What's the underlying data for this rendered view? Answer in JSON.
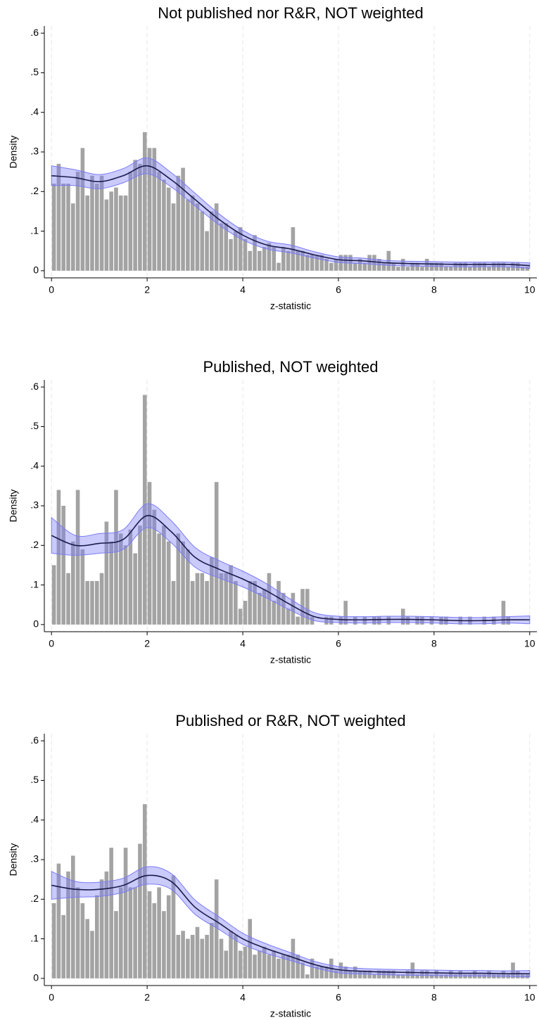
{
  "chart_data": [
    {
      "type": "histogram",
      "title": "Not published nor R&R, NOT weighted",
      "xlabel": "z-statistic",
      "ylabel": "Density",
      "bins": [
        0,
        0.1,
        0.2,
        0.3,
        0.4,
        0.5,
        0.6,
        0.7,
        0.8,
        0.9,
        1,
        1.1,
        1.2,
        1.3,
        1.4,
        1.5,
        1.6,
        1.7,
        1.8,
        1.9,
        2,
        2.1,
        2.2,
        2.3,
        2.4,
        2.5,
        2.6,
        2.7,
        2.8,
        2.9,
        3,
        3.1,
        3.2,
        3.3,
        3.4,
        3.5,
        3.6,
        3.7,
        3.8,
        3.9,
        4,
        4.1,
        4.2,
        4.3,
        4.4,
        4.5,
        4.6,
        4.7,
        4.8,
        4.9,
        5,
        5.1,
        5.2,
        5.3,
        5.4,
        5.5,
        5.6,
        5.7,
        5.8,
        5.9,
        6,
        6.1,
        6.2,
        6.3,
        6.4,
        6.5,
        6.6,
        6.7,
        6.8,
        6.9,
        7,
        7.1,
        7.2,
        7.3,
        7.4,
        7.5,
        7.6,
        7.7,
        7.8,
        7.9,
        8,
        8.1,
        8.2,
        8.3,
        8.4,
        8.5,
        8.6,
        8.7,
        8.8,
        8.9,
        9,
        9.1,
        9.2,
        9.3,
        9.4,
        9.5,
        9.6,
        9.7,
        9.8,
        9.9,
        10
      ],
      "values": [
        0.22,
        0.27,
        0.22,
        0.22,
        0.17,
        0.25,
        0.31,
        0.19,
        0.24,
        0.22,
        0.24,
        0.18,
        0.2,
        0.21,
        0.19,
        0.19,
        0.25,
        0.28,
        0.27,
        0.35,
        0.31,
        0.31,
        0.25,
        0.23,
        0.21,
        0.17,
        0.24,
        0.26,
        0.18,
        0.19,
        0.17,
        0.15,
        0.1,
        0.15,
        0.17,
        0.12,
        0.12,
        0.08,
        0.1,
        0.11,
        0.08,
        0.05,
        0.09,
        0.05,
        0.06,
        0.07,
        0.06,
        0.02,
        0.06,
        0.05,
        0.11,
        0.05,
        0.05,
        0.04,
        0.04,
        0.04,
        0.04,
        0.03,
        0.02,
        0.03,
        0.04,
        0.04,
        0.04,
        0.02,
        0.03,
        0.02,
        0.04,
        0.04,
        0.03,
        0.02,
        0.05,
        0.02,
        0.01,
        0.03,
        0.01,
        0.02,
        0.02,
        0.01,
        0.03,
        0.02,
        0.02,
        0.02,
        0.01,
        0.01,
        0.02,
        0.02,
        0.02,
        0.01,
        0.02,
        0.02,
        0.02,
        0.01,
        0.02,
        0.02,
        0.02,
        0.01,
        0.02,
        0.02,
        0.01,
        0.01
      ],
      "color": "#a3a3a3",
      "density": {
        "x": [
          0,
          0.5,
          1,
          1.5,
          2,
          2.5,
          3,
          3.5,
          4,
          4.5,
          5,
          5.5,
          6,
          6.5,
          7,
          7.5,
          8,
          8.5,
          9,
          9.5,
          10
        ],
        "values": [
          0.24,
          0.235,
          0.225,
          0.24,
          0.265,
          0.23,
          0.18,
          0.13,
          0.09,
          0.065,
          0.055,
          0.04,
          0.028,
          0.025,
          0.02,
          0.018,
          0.017,
          0.016,
          0.016,
          0.016,
          0.013
        ],
        "lower": [
          0.215,
          0.215,
          0.207,
          0.222,
          0.245,
          0.212,
          0.164,
          0.116,
          0.078,
          0.055,
          0.045,
          0.032,
          0.021,
          0.018,
          0.014,
          0.012,
          0.011,
          0.01,
          0.01,
          0.01,
          0.006
        ],
        "upper": [
          0.265,
          0.255,
          0.243,
          0.258,
          0.285,
          0.248,
          0.196,
          0.144,
          0.102,
          0.075,
          0.065,
          0.048,
          0.035,
          0.032,
          0.026,
          0.024,
          0.023,
          0.022,
          0.022,
          0.022,
          0.02
        ],
        "color": "#1b1b4a",
        "band_color": "#7b7bf5"
      },
      "xlim": [
        -0.15,
        10.15
      ],
      "xticks": [
        0,
        2,
        4,
        6,
        8,
        10
      ],
      "ylim": [
        -0.018,
        0.618
      ],
      "yticks": [
        0,
        {
          "value": 0.1,
          "label": ".1"
        },
        {
          "value": 0.2,
          "label": ".2"
        },
        {
          "value": 0.3,
          "label": ".3"
        },
        {
          "value": 0.4,
          "label": ".4"
        },
        {
          "value": 0.5,
          "label": ".5"
        },
        {
          "value": 0.6,
          "label": ".6"
        }
      ],
      "grid": true
    },
    {
      "type": "histogram",
      "title": "Published, NOT weighted",
      "xlabel": "z-statistic",
      "ylabel": "Density",
      "bins": [
        0,
        0.1,
        0.2,
        0.3,
        0.4,
        0.5,
        0.6,
        0.7,
        0.8,
        0.9,
        1,
        1.1,
        1.2,
        1.3,
        1.4,
        1.5,
        1.6,
        1.7,
        1.8,
        1.9,
        2,
        2.1,
        2.2,
        2.3,
        2.4,
        2.5,
        2.6,
        2.7,
        2.8,
        2.9,
        3,
        3.1,
        3.2,
        3.3,
        3.4,
        3.5,
        3.6,
        3.7,
        3.8,
        3.9,
        4,
        4.1,
        4.2,
        4.3,
        4.4,
        4.5,
        4.6,
        4.7,
        4.8,
        4.9,
        5,
        5.1,
        5.2,
        5.3,
        5.4,
        5.5,
        5.6,
        5.7,
        5.8,
        5.9,
        6,
        6.1,
        6.2,
        6.3,
        6.4,
        6.5,
        6.6,
        6.7,
        6.8,
        6.9,
        7,
        7.1,
        7.2,
        7.3,
        7.4,
        7.5,
        7.6,
        7.7,
        7.8,
        7.9,
        8,
        8.1,
        8.2,
        8.3,
        8.4,
        8.5,
        8.6,
        8.7,
        8.8,
        8.9,
        9,
        9.1,
        9.2,
        9.3,
        9.4,
        9.5,
        9.6,
        9.7,
        9.8,
        9.9,
        10
      ],
      "values": [
        0.15,
        0.34,
        0.3,
        0.13,
        0.21,
        0.34,
        0.19,
        0.11,
        0.11,
        0.11,
        0.13,
        0.26,
        0.21,
        0.34,
        0.23,
        0.2,
        0.24,
        0.18,
        0.25,
        0.58,
        0.36,
        0.29,
        0.23,
        0.25,
        0.21,
        0.11,
        0.23,
        0.21,
        0.19,
        0.11,
        0.13,
        0.13,
        0.11,
        0.17,
        0.36,
        0.13,
        0.13,
        0.15,
        0.11,
        0.04,
        0.06,
        0.11,
        0.11,
        0.08,
        0.09,
        0.13,
        0.06,
        0.11,
        0.08,
        0.04,
        0.08,
        0.02,
        0.09,
        0.09,
        0.02,
        0,
        0,
        0.02,
        0.02,
        0,
        0.02,
        0.06,
        0,
        0.02,
        0,
        0.02,
        0,
        0.02,
        0.02,
        0,
        0.02,
        0,
        0,
        0.04,
        0.02,
        0,
        0.02,
        0.02,
        0,
        0.02,
        0,
        0.02,
        0.02,
        0,
        0,
        0.02,
        0,
        0.02,
        0,
        0,
        0.02,
        0,
        0.02,
        0,
        0.06,
        0.02,
        0,
        0,
        0,
        0
      ],
      "color": "#a3a3a3",
      "density": {
        "x": [
          0,
          0.5,
          1,
          1.5,
          2,
          2.5,
          3,
          3.5,
          4,
          4.5,
          5,
          5.5,
          6,
          6.5,
          7,
          7.5,
          8,
          8.5,
          9,
          9.5,
          10
        ],
        "values": [
          0.225,
          0.2,
          0.205,
          0.215,
          0.275,
          0.235,
          0.17,
          0.14,
          0.115,
          0.085,
          0.05,
          0.02,
          0.013,
          0.012,
          0.013,
          0.013,
          0.012,
          0.01,
          0.01,
          0.012,
          0.012
        ],
        "lower": [
          0.18,
          0.175,
          0.18,
          0.19,
          0.245,
          0.207,
          0.145,
          0.118,
          0.095,
          0.067,
          0.036,
          0.01,
          0.005,
          0.004,
          0.005,
          0.005,
          0.004,
          0.002,
          0.002,
          0.004,
          0.002
        ],
        "upper": [
          0.27,
          0.225,
          0.23,
          0.24,
          0.305,
          0.263,
          0.195,
          0.162,
          0.135,
          0.103,
          0.064,
          0.03,
          0.021,
          0.02,
          0.021,
          0.021,
          0.02,
          0.018,
          0.018,
          0.02,
          0.022
        ],
        "color": "#1b1b4a",
        "band_color": "#7b7bf5"
      },
      "xlim": [
        -0.15,
        10.15
      ],
      "xticks": [
        0,
        2,
        4,
        6,
        8,
        10
      ],
      "ylim": [
        -0.018,
        0.618
      ],
      "yticks": [
        0,
        {
          "value": 0.1,
          "label": ".1"
        },
        {
          "value": 0.2,
          "label": ".2"
        },
        {
          "value": 0.3,
          "label": ".3"
        },
        {
          "value": 0.4,
          "label": ".4"
        },
        {
          "value": 0.5,
          "label": ".5"
        },
        {
          "value": 0.6,
          "label": ".6"
        }
      ],
      "grid": true
    },
    {
      "type": "histogram",
      "title": "Published or R&R, NOT weighted",
      "xlabel": "z-statistic",
      "ylabel": "Density",
      "bins": [
        0,
        0.1,
        0.2,
        0.3,
        0.4,
        0.5,
        0.6,
        0.7,
        0.8,
        0.9,
        1,
        1.1,
        1.2,
        1.3,
        1.4,
        1.5,
        1.6,
        1.7,
        1.8,
        1.9,
        2,
        2.1,
        2.2,
        2.3,
        2.4,
        2.5,
        2.6,
        2.7,
        2.8,
        2.9,
        3,
        3.1,
        3.2,
        3.3,
        3.4,
        3.5,
        3.6,
        3.7,
        3.8,
        3.9,
        4,
        4.1,
        4.2,
        4.3,
        4.4,
        4.5,
        4.6,
        4.7,
        4.8,
        4.9,
        5,
        5.1,
        5.2,
        5.3,
        5.4,
        5.5,
        5.6,
        5.7,
        5.8,
        5.9,
        6,
        6.1,
        6.2,
        6.3,
        6.4,
        6.5,
        6.6,
        6.7,
        6.8,
        6.9,
        7,
        7.1,
        7.2,
        7.3,
        7.4,
        7.5,
        7.6,
        7.7,
        7.8,
        7.9,
        8,
        8.1,
        8.2,
        8.3,
        8.4,
        8.5,
        8.6,
        8.7,
        8.8,
        8.9,
        9,
        9.1,
        9.2,
        9.3,
        9.4,
        9.5,
        9.6,
        9.7,
        9.8,
        9.9,
        10
      ],
      "values": [
        0.19,
        0.29,
        0.16,
        0.27,
        0.31,
        0.23,
        0.19,
        0.15,
        0.12,
        0.21,
        0.25,
        0.27,
        0.33,
        0.17,
        0.23,
        0.33,
        0.23,
        0.23,
        0.34,
        0.44,
        0.22,
        0.19,
        0.23,
        0.17,
        0.21,
        0.26,
        0.11,
        0.12,
        0.1,
        0.11,
        0.13,
        0.1,
        0.11,
        0.14,
        0.25,
        0.1,
        0.07,
        0.12,
        0.11,
        0.07,
        0.08,
        0.15,
        0.06,
        0.07,
        0.08,
        0.06,
        0.07,
        0.05,
        0.06,
        0.06,
        0.1,
        0.06,
        0.04,
        0.01,
        0.05,
        0.03,
        0.03,
        0.03,
        0.05,
        0.02,
        0.04,
        0.03,
        0.02,
        0.03,
        0.02,
        0.02,
        0.02,
        0.01,
        0.02,
        0.02,
        0.02,
        0.02,
        0.01,
        0.01,
        0.02,
        0.04,
        0.01,
        0.02,
        0.02,
        0.01,
        0.02,
        0.01,
        0.01,
        0.02,
        0.01,
        0.02,
        0.01,
        0.01,
        0.02,
        0.01,
        0.01,
        0.02,
        0.01,
        0.01,
        0.02,
        0.01,
        0.04,
        0.02,
        0.01,
        0.01
      ],
      "color": "#a3a3a3",
      "density": {
        "x": [
          0,
          0.5,
          1,
          1.5,
          2,
          2.5,
          3,
          3.5,
          4,
          4.5,
          5,
          5.5,
          6,
          6.5,
          7,
          7.5,
          8,
          8.5,
          9,
          9.5,
          10
        ],
        "values": [
          0.235,
          0.225,
          0.225,
          0.235,
          0.26,
          0.245,
          0.18,
          0.14,
          0.1,
          0.075,
          0.055,
          0.035,
          0.022,
          0.018,
          0.016,
          0.015,
          0.014,
          0.013,
          0.013,
          0.012,
          0.012
        ],
        "lower": [
          0.2,
          0.205,
          0.207,
          0.217,
          0.238,
          0.225,
          0.162,
          0.124,
          0.086,
          0.063,
          0.045,
          0.027,
          0.014,
          0.011,
          0.009,
          0.008,
          0.007,
          0.006,
          0.006,
          0.005,
          0.004
        ],
        "upper": [
          0.27,
          0.245,
          0.243,
          0.253,
          0.282,
          0.265,
          0.198,
          0.156,
          0.114,
          0.087,
          0.065,
          0.043,
          0.03,
          0.025,
          0.023,
          0.022,
          0.021,
          0.02,
          0.02,
          0.019,
          0.02
        ],
        "color": "#1b1b4a",
        "band_color": "#7b7bf5"
      },
      "xlim": [
        -0.15,
        10.15
      ],
      "xticks": [
        0,
        2,
        4,
        6,
        8,
        10
      ],
      "ylim": [
        -0.018,
        0.618
      ],
      "yticks": [
        0,
        {
          "value": 0.1,
          "label": ".1"
        },
        {
          "value": 0.2,
          "label": ".2"
        },
        {
          "value": 0.3,
          "label": ".3"
        },
        {
          "value": 0.4,
          "label": ".4"
        },
        {
          "value": 0.5,
          "label": ".5"
        },
        {
          "value": 0.6,
          "label": ".6"
        }
      ],
      "grid": true
    }
  ]
}
